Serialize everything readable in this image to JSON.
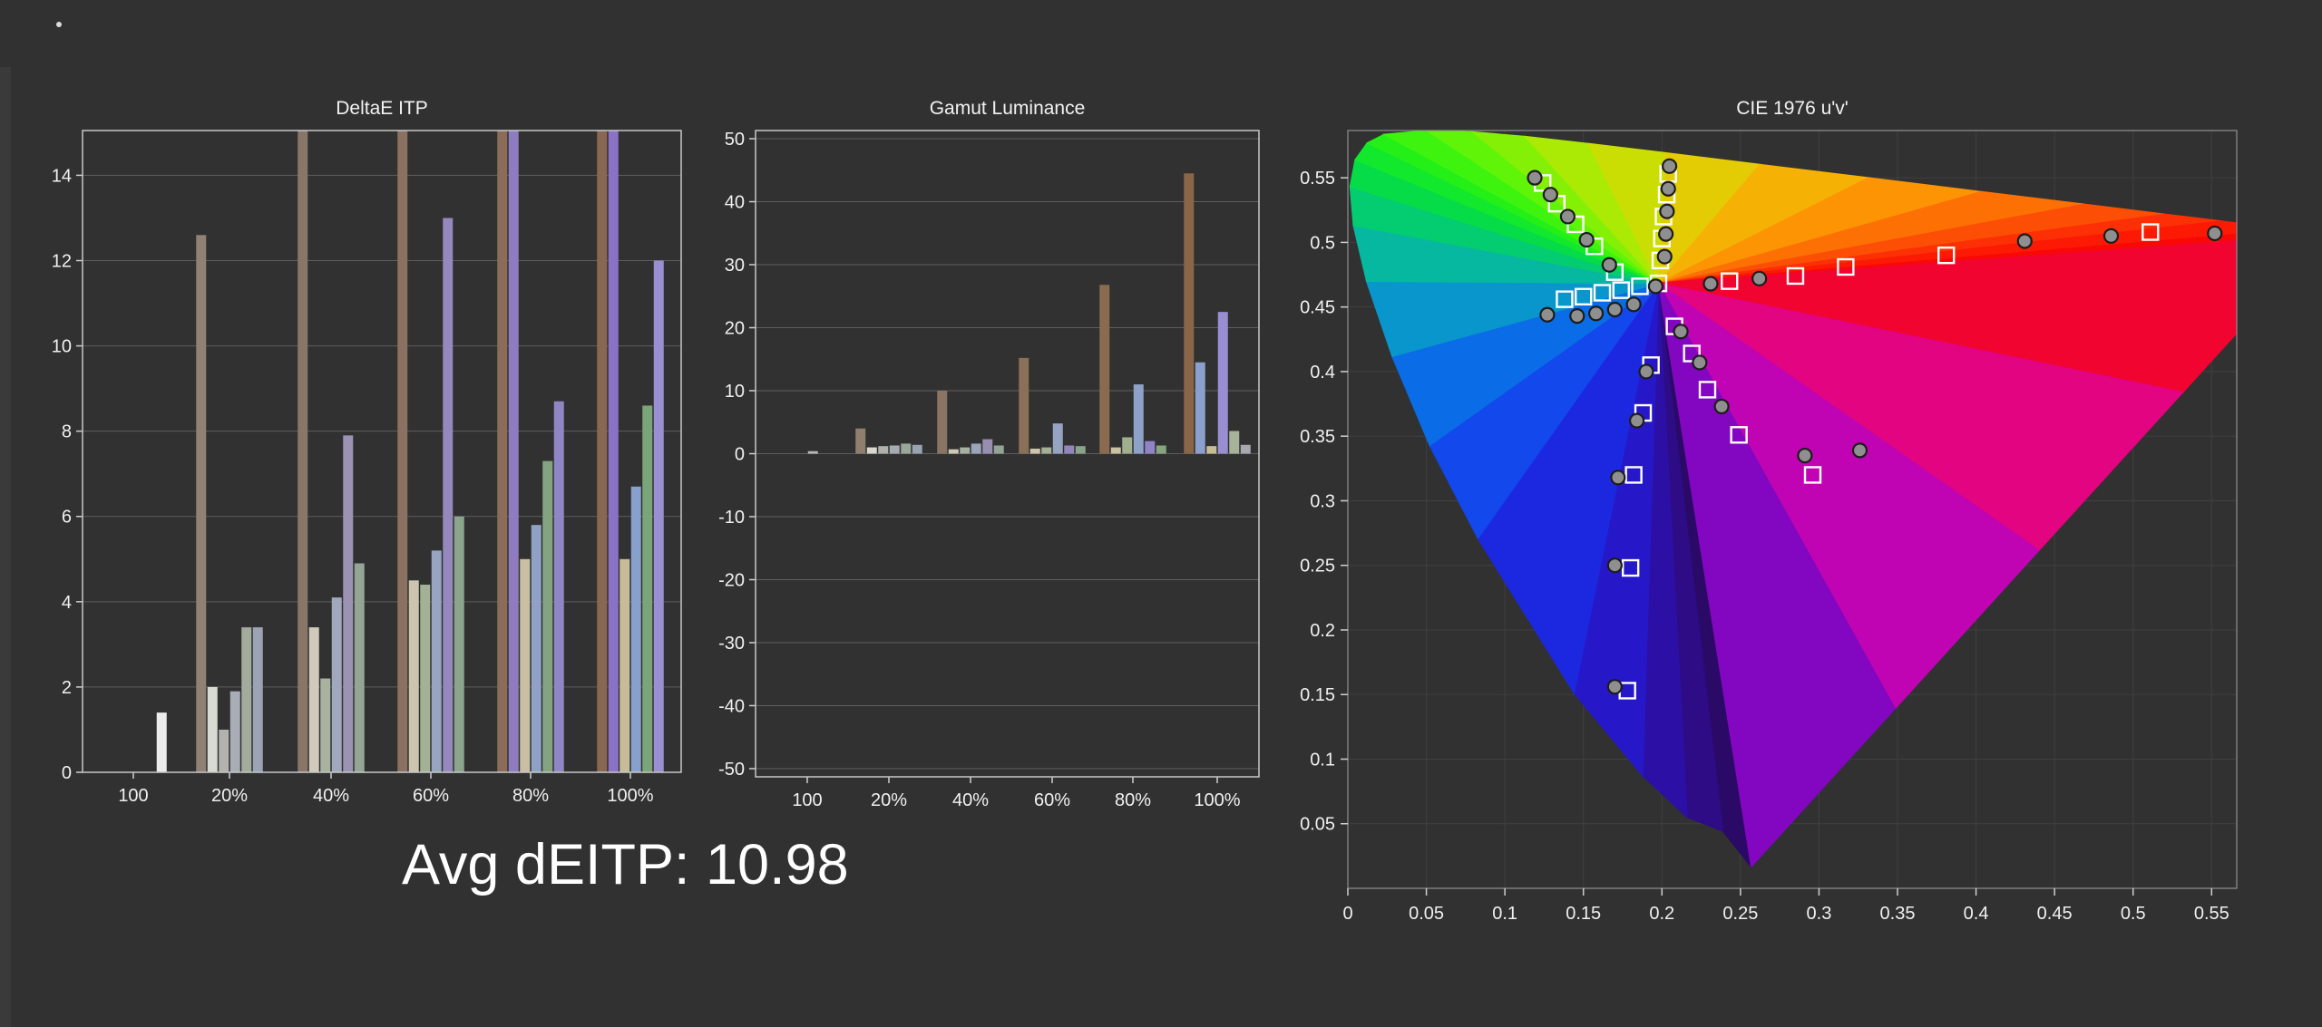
{
  "page": {
    "background": "#313131",
    "text_color": "#f2f2f2",
    "avg_text": "Avg dEITP: 10.98",
    "avg_value": 10.98
  },
  "chart_data": [
    {
      "id": "deltae",
      "type": "bar",
      "title": "DeltaE ITP",
      "categories": [
        "100",
        "20%",
        "40%",
        "60%",
        "80%",
        "100%"
      ],
      "xlabel": "",
      "ylabel": "",
      "ylim": [
        0,
        15.05
      ],
      "yticks": [
        0,
        2,
        4,
        6,
        8,
        10,
        12,
        14
      ],
      "grid": true,
      "groups": [
        {
          "label": "100",
          "bars": [
            {
              "value": 1.4,
              "color": "#ececec",
              "slot": 5
            }
          ]
        },
        {
          "label": "20%",
          "bars": [
            {
              "value": 12.6,
              "color": "#8f8174"
            },
            {
              "value": 2.0,
              "color": "#dadad4"
            },
            {
              "value": 1.0,
              "color": "#b2b2ae"
            },
            {
              "value": 1.9,
              "color": "#a9adb6"
            },
            {
              "value": 3.4,
              "color": "#a2ab9c"
            },
            {
              "value": 3.4,
              "color": "#9aa4b4"
            }
          ]
        },
        {
          "label": "40%",
          "bars": [
            {
              "value": 16,
              "clipped": true,
              "color": "#8a7668"
            },
            {
              "value": 3.4,
              "color": "#cfcabb"
            },
            {
              "value": 2.2,
              "color": "#a9b2a0"
            },
            {
              "value": 4.1,
              "color": "#9fa8bc"
            },
            {
              "value": 7.9,
              "color": "#9c93b2"
            },
            {
              "value": 4.9,
              "color": "#93a595"
            }
          ]
        },
        {
          "label": "60%",
          "bars": [
            {
              "value": 16,
              "clipped": true,
              "color": "#8a7161"
            },
            {
              "value": 4.5,
              "color": "#ccc4ae"
            },
            {
              "value": 4.4,
              "color": "#a3b195"
            },
            {
              "value": 5.2,
              "color": "#97a5c0"
            },
            {
              "value": 13.0,
              "color": "#9488bc"
            },
            {
              "value": 6.0,
              "color": "#8aa58c"
            }
          ]
        },
        {
          "label": "80%",
          "bars": [
            {
              "value": 16,
              "clipped": true,
              "color": "#8a6c58"
            },
            {
              "value": 16,
              "clipped": true,
              "color": "#8f7cc0"
            },
            {
              "value": 5.0,
              "color": "#c9c0a4"
            },
            {
              "value": 5.8,
              "color": "#8fa2c6"
            },
            {
              "value": 7.3,
              "color": "#84a481"
            },
            {
              "value": 8.7,
              "color": "#8f86c4"
            }
          ]
        },
        {
          "label": "100%",
          "bars": [
            {
              "value": 16,
              "clipped": true,
              "color": "#8a6750"
            },
            {
              "value": 16,
              "clipped": true,
              "color": "#8a72c8"
            },
            {
              "value": 5.0,
              "color": "#c6bd98"
            },
            {
              "value": 6.7,
              "color": "#87a0cc"
            },
            {
              "value": 8.6,
              "color": "#7aa47a"
            },
            {
              "value": 12.0,
              "color": "#9a8fd0"
            }
          ]
        }
      ]
    },
    {
      "id": "gamut",
      "type": "bar",
      "title": "Gamut Luminance",
      "categories": [
        "100",
        "20%",
        "40%",
        "60%",
        "80%",
        "100%"
      ],
      "xlabel": "",
      "ylabel": "",
      "ylim": [
        -51.3,
        51.3
      ],
      "yticks": [
        -50,
        -40,
        -30,
        -20,
        -10,
        0,
        10,
        20,
        30,
        40,
        50
      ],
      "grid": true,
      "groups": [
        {
          "label": "100",
          "bars": [
            {
              "value": 0.4,
              "color": "#b8b8b8",
              "slot": 3
            }
          ]
        },
        {
          "label": "20%",
          "bars": [
            {
              "value": 4.0,
              "color": "#8f7f6f"
            },
            {
              "value": 1.0,
              "color": "#d8d8d0"
            },
            {
              "value": 1.2,
              "color": "#b0b0aa"
            },
            {
              "value": 1.3,
              "color": "#a6aab2"
            },
            {
              "value": 1.6,
              "color": "#9aa89a"
            },
            {
              "value": 1.4,
              "color": "#98a2b0"
            }
          ]
        },
        {
          "label": "40%",
          "bars": [
            {
              "value": 10.0,
              "color": "#8a7565"
            },
            {
              "value": 0.7,
              "color": "#cfcab8"
            },
            {
              "value": 1.0,
              "color": "#a8b0a0"
            },
            {
              "value": 1.6,
              "color": "#9aa4ba"
            },
            {
              "value": 2.3,
              "color": "#988fb0"
            },
            {
              "value": 1.3,
              "color": "#92a494"
            }
          ]
        },
        {
          "label": "60%",
          "bars": [
            {
              "value": 15.2,
              "color": "#8a7058"
            },
            {
              "value": 0.8,
              "color": "#ccc4ac"
            },
            {
              "value": 1.0,
              "color": "#a2b094"
            },
            {
              "value": 4.8,
              "color": "#96a4c2"
            },
            {
              "value": 1.3,
              "color": "#9286bc"
            },
            {
              "value": 1.2,
              "color": "#8aa48a"
            }
          ]
        },
        {
          "label": "80%",
          "bars": [
            {
              "value": 26.8,
              "color": "#8a6b50"
            },
            {
              "value": 1.0,
              "color": "#cac0a2"
            },
            {
              "value": 2.6,
              "color": "#a0b08e"
            },
            {
              "value": 11.0,
              "color": "#8ea2c8"
            },
            {
              "value": 2.0,
              "color": "#9084c6"
            },
            {
              "value": 1.3,
              "color": "#86a480"
            }
          ]
        },
        {
          "label": "100%",
          "bars": [
            {
              "value": 44.5,
              "color": "#8a6648"
            },
            {
              "value": 14.5,
              "color": "#8ca0ce"
            },
            {
              "value": 1.2,
              "color": "#c6bc96"
            },
            {
              "value": 22.5,
              "color": "#9a8ed2"
            },
            {
              "value": 3.6,
              "color": "#a8b29a"
            },
            {
              "value": 1.4,
              "color": "#a8a8b0"
            }
          ]
        }
      ]
    },
    {
      "id": "cie",
      "type": "scatter",
      "title": "CIE 1976 u'v'",
      "xlim": [
        0,
        0.566
      ],
      "ylim": [
        0,
        0.5866
      ],
      "xticks": [
        0,
        0.05,
        0.1,
        0.15,
        0.2,
        0.25,
        0.3,
        0.35,
        0.4,
        0.45,
        0.5,
        0.55
      ],
      "yticks": [
        0.05,
        0.1,
        0.15,
        0.2,
        0.25,
        0.3,
        0.35,
        0.4,
        0.45,
        0.5,
        0.55
      ],
      "grid": true,
      "white_point": {
        "u": 0.1978,
        "v": 0.4683
      },
      "spectral_locus": [
        {
          "u": 0.2568,
          "v": 0.0166,
          "c": "#2a0a66"
        },
        {
          "u": 0.2388,
          "v": 0.0442,
          "c": "#2d0c86"
        },
        {
          "u": 0.2161,
          "v": 0.0549,
          "c": "#2c10a6"
        },
        {
          "u": 0.1877,
          "v": 0.0871,
          "c": "#2618c8"
        },
        {
          "u": 0.1441,
          "v": 0.151,
          "c": "#1c28e0"
        },
        {
          "u": 0.0828,
          "v": 0.2708,
          "c": "#1248ec"
        },
        {
          "u": 0.0521,
          "v": 0.3427,
          "c": "#0a6ce6"
        },
        {
          "u": 0.0282,
          "v": 0.4117,
          "c": "#0896cc"
        },
        {
          "u": 0.0119,
          "v": 0.4698,
          "c": "#06b8a0"
        },
        {
          "u": 0.0035,
          "v": 0.5131,
          "c": "#04cc70"
        },
        {
          "u": 0.0014,
          "v": 0.5432,
          "c": "#06dc48"
        },
        {
          "u": 0.0046,
          "v": 0.5639,
          "c": "#12e82c"
        },
        {
          "u": 0.0123,
          "v": 0.577,
          "c": "#24f018"
        },
        {
          "u": 0.0231,
          "v": 0.5837,
          "c": "#3ef40e"
        },
        {
          "u": 0.0501,
          "v": 0.5867,
          "c": "#60f408"
        },
        {
          "u": 0.0792,
          "v": 0.5856,
          "c": "#84f006"
        },
        {
          "u": 0.1127,
          "v": 0.5821,
          "c": "#aaea04"
        },
        {
          "u": 0.1531,
          "v": 0.5766,
          "c": "#cade04"
        },
        {
          "u": 0.2026,
          "v": 0.5694,
          "c": "#e4cc04"
        },
        {
          "u": 0.2623,
          "v": 0.5604,
          "c": "#f6b204"
        },
        {
          "u": 0.3316,
          "v": 0.5501,
          "c": "#fc9404"
        },
        {
          "u": 0.4035,
          "v": 0.5393,
          "c": "#fc7004"
        },
        {
          "u": 0.4692,
          "v": 0.5296,
          "c": "#fc4e04"
        },
        {
          "u": 0.5203,
          "v": 0.5219,
          "c": "#fc3004"
        },
        {
          "u": 0.5565,
          "v": 0.5165,
          "c": "#fc1a04"
        },
        {
          "u": 0.6005,
          "v": 0.5099,
          "c": "#fa0806"
        },
        {
          "u": 0.6234,
          "v": 0.5065,
          "c": "#f20430"
        },
        {
          "u": 0.5318,
          "v": 0.384,
          "c": "#e20480"
        },
        {
          "u": 0.4401,
          "v": 0.2616,
          "c": "#c004b4"
        },
        {
          "u": 0.3485,
          "v": 0.1391,
          "c": "#8306c0"
        }
      ],
      "reference_points": [
        [
          0.1978,
          0.4683
        ],
        [
          0.17,
          0.477
        ],
        [
          0.157,
          0.497
        ],
        [
          0.145,
          0.514
        ],
        [
          0.133,
          0.53
        ],
        [
          0.124,
          0.546
        ],
        [
          0.199,
          0.486
        ],
        [
          0.2,
          0.503
        ],
        [
          0.201,
          0.52
        ],
        [
          0.203,
          0.537
        ],
        [
          0.204,
          0.553
        ],
        [
          0.243,
          0.47
        ],
        [
          0.285,
          0.474
        ],
        [
          0.317,
          0.481
        ],
        [
          0.381,
          0.49
        ],
        [
          0.511,
          0.508
        ],
        [
          0.208,
          0.435
        ],
        [
          0.219,
          0.414
        ],
        [
          0.229,
          0.386
        ],
        [
          0.249,
          0.351
        ],
        [
          0.296,
          0.32
        ],
        [
          0.193,
          0.405
        ],
        [
          0.188,
          0.368
        ],
        [
          0.182,
          0.32
        ],
        [
          0.18,
          0.248
        ],
        [
          0.178,
          0.153
        ],
        [
          0.186,
          0.466
        ],
        [
          0.174,
          0.463
        ],
        [
          0.162,
          0.461
        ],
        [
          0.15,
          0.458
        ],
        [
          0.138,
          0.456
        ]
      ],
      "measured_points": [
        [
          0.196,
          0.466
        ],
        [
          0.1665,
          0.4826
        ],
        [
          0.152,
          0.502
        ],
        [
          0.14,
          0.52
        ],
        [
          0.129,
          0.537
        ],
        [
          0.119,
          0.55
        ],
        [
          0.2017,
          0.489
        ],
        [
          0.2025,
          0.5065
        ],
        [
          0.2032,
          0.524
        ],
        [
          0.204,
          0.5415
        ],
        [
          0.2048,
          0.559
        ],
        [
          0.231,
          0.468
        ],
        [
          0.262,
          0.472
        ],
        [
          0.431,
          0.501
        ],
        [
          0.486,
          0.505
        ],
        [
          0.552,
          0.507
        ],
        [
          0.212,
          0.431
        ],
        [
          0.224,
          0.407
        ],
        [
          0.238,
          0.373
        ],
        [
          0.291,
          0.335
        ],
        [
          0.326,
          0.339
        ],
        [
          0.19,
          0.4
        ],
        [
          0.184,
          0.362
        ],
        [
          0.172,
          0.318
        ],
        [
          0.17,
          0.25
        ],
        [
          0.17,
          0.156
        ],
        [
          0.182,
          0.452
        ],
        [
          0.17,
          0.448
        ],
        [
          0.158,
          0.445
        ],
        [
          0.146,
          0.443
        ],
        [
          0.127,
          0.444
        ]
      ]
    }
  ]
}
